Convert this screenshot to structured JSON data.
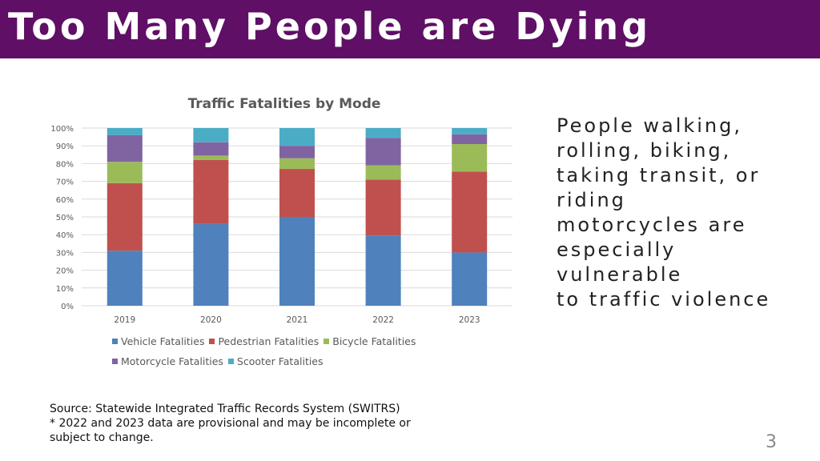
{
  "header": {
    "title": "Too Many People are Dying"
  },
  "side_text": [
    "People walking,",
    "rolling, biking,",
    "taking transit, or",
    "riding",
    "motorcycles are",
    "especially",
    "vulnerable",
    "to traffic violence"
  ],
  "source": {
    "line1": "Source: Statewide Integrated Traffic Records System (SWITRS)",
    "line2": "* 2022 and 2023 data are provisional and may be incomplete or",
    "line3": "subject to change."
  },
  "page_number": "3",
  "chart_data": {
    "type": "bar",
    "stacked": "percent",
    "title": "Traffic Fatalities by Mode",
    "categories": [
      "2019",
      "2020",
      "2021",
      "2022",
      "2023"
    ],
    "ylim": [
      0,
      100
    ],
    "yticks": [
      "0%",
      "10%",
      "20%",
      "30%",
      "40%",
      "50%",
      "60%",
      "70%",
      "80%",
      "90%",
      "100%"
    ],
    "grid": true,
    "legend_position": "bottom",
    "series": [
      {
        "name": "Vehicle Fatalities",
        "color": "#4f81bd",
        "values": [
          31,
          46,
          50,
          39.5,
          30
        ]
      },
      {
        "name": "Pedestrian Fatalities",
        "color": "#c0504d",
        "values": [
          38,
          36,
          27,
          31.5,
          45.5
        ]
      },
      {
        "name": "Bicycle Fatalities",
        "color": "#9bbb59",
        "values": [
          12,
          2.5,
          6,
          8,
          15.5
        ]
      },
      {
        "name": "Motorcycle Fatalities",
        "color": "#8064a2",
        "values": [
          15,
          7.5,
          7,
          15.5,
          5.5
        ]
      },
      {
        "name": "Scooter Fatalities",
        "color": "#4bacc6",
        "values": [
          4,
          8,
          10,
          5.5,
          3.5
        ]
      }
    ]
  }
}
